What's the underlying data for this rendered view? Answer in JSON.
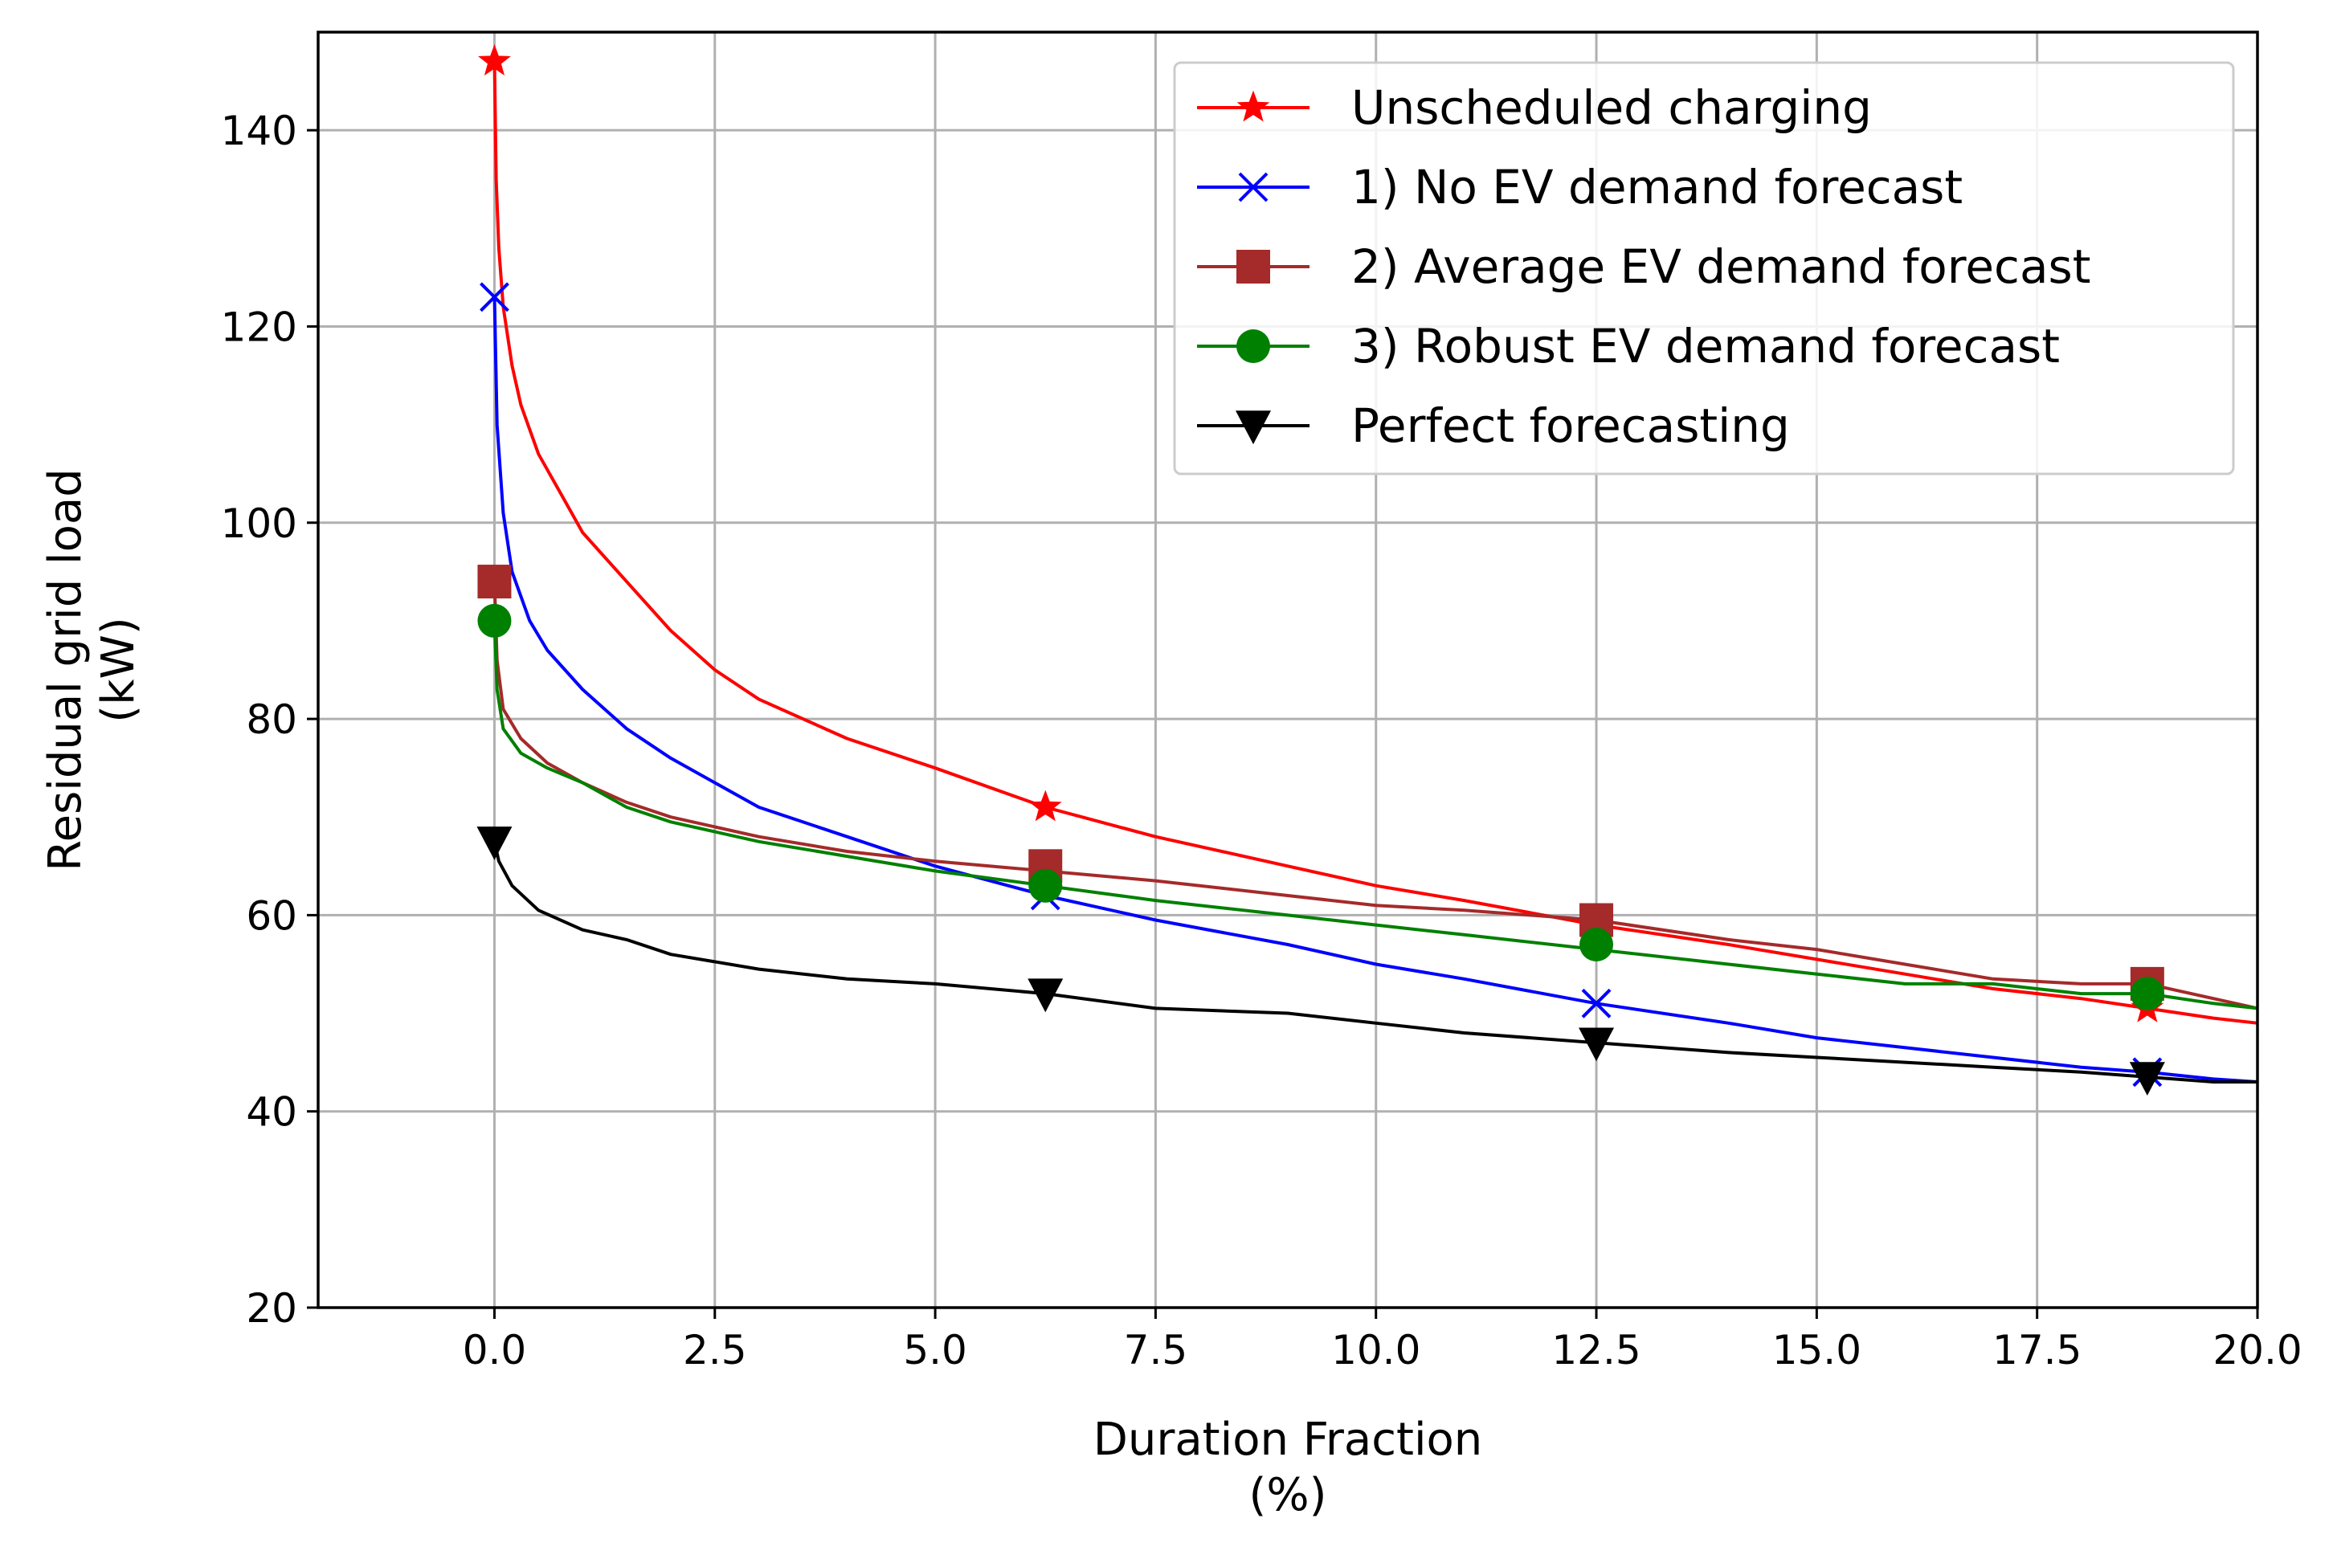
{
  "chart_data": {
    "type": "line",
    "title": "",
    "xlabel_line1": "Duration Fraction",
    "xlabel_line2": "(%)",
    "ylabel_line1": "Residual grid load",
    "ylabel_line2": "(kW)",
    "xlim": [
      -2.0,
      20.0
    ],
    "ylim": [
      20,
      150
    ],
    "grid": true,
    "legend_position": "top-right",
    "xticks": [
      0.0,
      2.5,
      5.0,
      7.5,
      10.0,
      12.5,
      15.0,
      17.5,
      20.0
    ],
    "xtick_labels": [
      "0.0",
      "2.5",
      "5.0",
      "7.5",
      "10.0",
      "12.5",
      "15.0",
      "17.5",
      "20.0"
    ],
    "yticks": [
      20,
      40,
      60,
      80,
      100,
      120,
      140
    ],
    "ytick_labels": [
      "20",
      "40",
      "60",
      "80",
      "100",
      "120",
      "140"
    ],
    "series": [
      {
        "name": "Unscheduled charging",
        "color": "#ff0000",
        "marker": "star",
        "x": [
          0,
          0.02,
          0.05,
          0.1,
          0.2,
          0.3,
          0.5,
          0.75,
          1.0,
          1.5,
          2.0,
          2.5,
          3.0,
          4.0,
          5.0,
          6.25,
          7.5,
          9.0,
          10.0,
          11.0,
          12.5,
          14.0,
          15.0,
          16.0,
          17.0,
          18.0,
          18.75,
          19.5,
          20.0
        ],
        "y": [
          147,
          135,
          128,
          122,
          116,
          112,
          107,
          103,
          99,
          94,
          89,
          85,
          82,
          78,
          75,
          71,
          68,
          65,
          63,
          61.5,
          59,
          57,
          55.5,
          54,
          52.5,
          51.5,
          50.5,
          49.5,
          49
        ],
        "marker_x": [
          0,
          6.25,
          12.5,
          18.75
        ],
        "marker_y": [
          147,
          71,
          59,
          50.5
        ]
      },
      {
        "name": "1) No EV demand forecast",
        "color": "#0000ff",
        "marker": "x",
        "x": [
          0,
          0.03,
          0.1,
          0.2,
          0.4,
          0.6,
          1.0,
          1.5,
          2.0,
          2.5,
          3.0,
          4.0,
          5.0,
          6.25,
          7.5,
          9.0,
          10.0,
          11.0,
          12.5,
          14.0,
          15.0,
          16.0,
          17.0,
          18.0,
          18.75,
          19.5,
          20.0
        ],
        "y": [
          123,
          110,
          101,
          95,
          90,
          87,
          83,
          79,
          76,
          73.5,
          71,
          68,
          65,
          62,
          59.5,
          57,
          55,
          53.5,
          51,
          49,
          47.5,
          46.5,
          45.5,
          44.5,
          44,
          43.3,
          43
        ],
        "marker_x": [
          0,
          6.25,
          12.5,
          18.75
        ],
        "marker_y": [
          123,
          62,
          51,
          44
        ]
      },
      {
        "name": "2) Average EV demand forecast",
        "color": "#a52a2a",
        "marker": "square",
        "x": [
          0,
          0.03,
          0.1,
          0.3,
          0.6,
          1.0,
          1.5,
          2.0,
          3.0,
          4.0,
          5.0,
          6.25,
          7.5,
          9.0,
          10.0,
          11.0,
          12.5,
          14.0,
          15.0,
          16.0,
          17.0,
          18.0,
          18.75,
          19.5,
          20.0
        ],
        "y": [
          94,
          86,
          81,
          78,
          75.5,
          73.5,
          71.5,
          70,
          68,
          66.5,
          65.5,
          64.5,
          63.5,
          62,
          61,
          60.5,
          59.5,
          57.5,
          56.5,
          55,
          53.5,
          53,
          53,
          51.5,
          50.5
        ],
        "marker_x": [
          0,
          6.25,
          12.5,
          18.75
        ],
        "marker_y": [
          94,
          65,
          59.5,
          53
        ]
      },
      {
        "name": "3) Robust EV demand forecast",
        "color": "#008000",
        "marker": "circle",
        "x": [
          0,
          0.03,
          0.1,
          0.3,
          0.6,
          1.0,
          1.5,
          2.0,
          3.0,
          4.0,
          5.0,
          6.25,
          7.5,
          9.0,
          10.0,
          11.0,
          12.5,
          14.0,
          15.0,
          16.0,
          17.0,
          18.0,
          18.75,
          19.5,
          20.0
        ],
        "y": [
          90,
          83,
          79,
          76.5,
          75,
          73.5,
          71,
          69.5,
          67.5,
          66,
          64.5,
          63,
          61.5,
          60,
          59,
          58,
          56.5,
          55,
          54,
          53,
          53,
          52,
          52,
          51,
          50.5
        ],
        "marker_x": [
          0,
          6.25,
          12.5,
          18.75
        ],
        "marker_y": [
          90,
          63,
          57,
          52
        ]
      },
      {
        "name": "Perfect forecasting",
        "color": "#000000",
        "marker": "triangle-down",
        "x": [
          0,
          0.05,
          0.2,
          0.5,
          1.0,
          1.5,
          2.0,
          3.0,
          4.0,
          5.0,
          6.25,
          7.5,
          9.0,
          10.0,
          11.0,
          12.5,
          14.0,
          15.0,
          16.0,
          17.0,
          18.0,
          18.75,
          19.5,
          20.0
        ],
        "y": [
          67.5,
          65.5,
          63,
          60.5,
          58.5,
          57.5,
          56,
          54.5,
          53.5,
          53,
          52,
          50.5,
          50,
          49,
          48,
          47,
          46,
          45.5,
          45,
          44.5,
          44,
          43.5,
          43,
          43
        ],
        "marker_x": [
          0,
          6.25,
          12.5,
          18.75
        ],
        "marker_y": [
          67.5,
          52,
          47,
          43.5
        ]
      }
    ]
  }
}
